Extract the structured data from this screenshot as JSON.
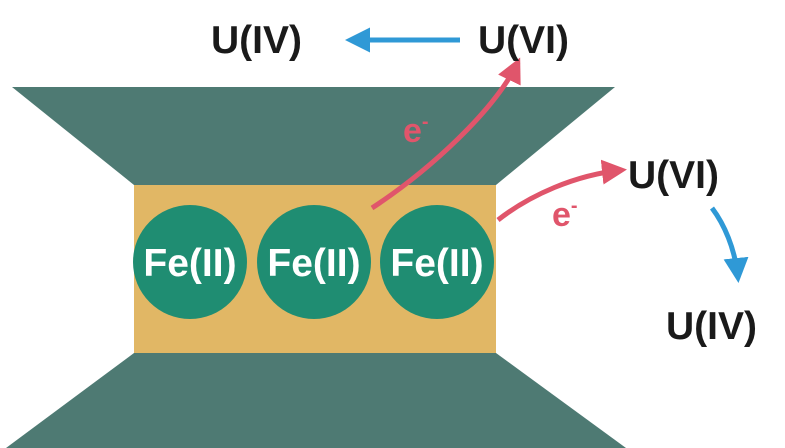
{
  "labels": {
    "top_left_uiv": "U(IV)",
    "top_right_uvi": "U(VI)",
    "right_uvi": "U(VI)",
    "right_uiv": "U(IV)",
    "electron_1": "e",
    "electron_2": "e",
    "electron_charge": "-",
    "fe_1": "Fe(II)",
    "fe_2": "Fe(II)",
    "fe_3": "Fe(II)"
  },
  "colors": {
    "layer": "#4e7a73",
    "interlayer": "#e1b765",
    "fe_circle": "#1f8d72",
    "fe_text": "#ffffff",
    "electron_arrow": "#e0556b",
    "reduction_arrow": "#2f99d6",
    "text": "#1a1a1a"
  }
}
